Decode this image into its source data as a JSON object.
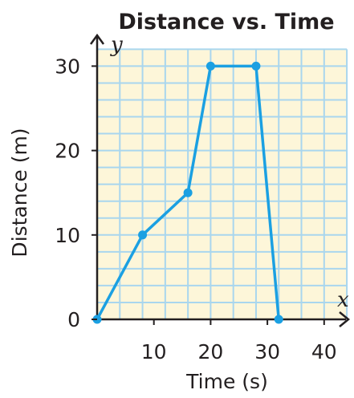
{
  "chart_data": {
    "type": "line",
    "title": "Distance vs. Time",
    "xlabel": "Time (s)",
    "ylabel": "Distance (m)",
    "x_axis_letter": "x",
    "y_axis_letter": "y",
    "x": [
      0,
      8,
      16,
      20,
      28,
      32
    ],
    "y": [
      0,
      10,
      15,
      30,
      30,
      0
    ],
    "xticks": [
      "10",
      "20",
      "30",
      "40"
    ],
    "yticks": [
      "0",
      "10",
      "20",
      "30"
    ],
    "xlim": [
      0,
      44
    ],
    "ylim": [
      0,
      32
    ],
    "grid": true,
    "colors": {
      "grid_background": "#fdf6d9",
      "grid_lines": "#a9d6ee",
      "series": "#1ba0e2",
      "axis": "#231f20"
    }
  }
}
